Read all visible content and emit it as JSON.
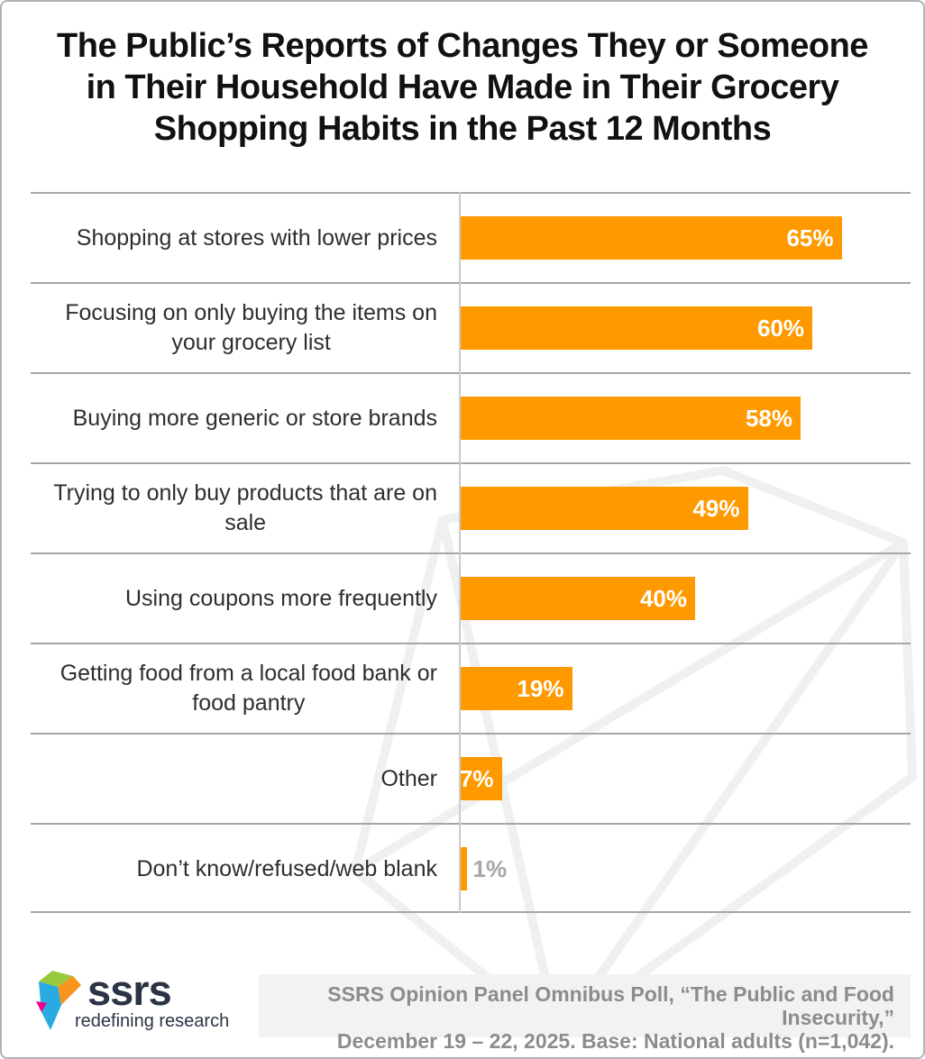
{
  "title": {
    "line1": "The Public’s Reports of Changes They or Someone",
    "line2": "in Their Household Have Made in Their Grocery",
    "line3": "Shopping Habits in the Past 12 Months"
  },
  "chart_data": {
    "type": "bar",
    "orientation": "horizontal",
    "title": "The Public’s Reports of Changes They or Someone in Their Household Have Made in Their Grocery Shopping Habits in the Past 12 Months",
    "categories": [
      "Shopping at stores with lower prices",
      "Focusing on only buying the items on your grocery list",
      "Buying more generic or store brands",
      "Trying to only buy products that are on sale",
      "Using coupons more frequently",
      "Getting food from a local food bank or food pantry",
      "Other",
      "Don’t know/refused/web blank"
    ],
    "label_lines": [
      [
        "Shopping at stores with lower prices"
      ],
      [
        "Focusing on only buying the items on",
        "your grocery list"
      ],
      [
        "Buying more generic or store brands"
      ],
      [
        "Trying to only buy products that are on",
        "sale"
      ],
      [
        "Using coupons more frequently"
      ],
      [
        "Getting food from a local food bank or",
        "food pantry"
      ],
      [
        "Other"
      ],
      [
        "Don’t know/refused/web blank"
      ]
    ],
    "values": [
      65,
      60,
      58,
      49,
      40,
      19,
      7,
      1
    ],
    "labels": [
      "65%",
      "60%",
      "58%",
      "49%",
      "40%",
      "19%",
      "7%",
      "1%"
    ],
    "label_inside": [
      true,
      true,
      true,
      true,
      true,
      true,
      true,
      false
    ],
    "unit": "%",
    "xlim": [
      0,
      77
    ],
    "bar_color": "#FF9900",
    "inside_label_color": "#ffffff",
    "outside_label_color": "#a6a6a6",
    "gridline_color": "#a6a6a6",
    "axis_line_color": "#cccccc",
    "legend": "none",
    "grid": "horizontal-row-separators"
  },
  "footer": {
    "logo_text": "ssrs",
    "logo_tagline": "redefining research",
    "source_line1": "SSRS Opinion Panel Omnibus Poll, “The Public and Food Insecurity,”",
    "source_line2": "December 19 – 22, 2025. Base: National adults (n=1,042)."
  },
  "colors": {
    "bar_orange": "#FF9900",
    "title_text": "#111111",
    "category_text": "#2e2e2e",
    "separator_gray": "#a6a6a6",
    "axis_gray": "#cccccc",
    "source_text": "#8c8c8c",
    "source_background": "#f2f2f2",
    "logo_navy": "#2b3444",
    "logo_green": "#97C93D",
    "logo_orange": "#F7941E",
    "logo_blue": "#29ABE2",
    "logo_pink": "#EC008C",
    "watermark_gray": "#f0f0f0",
    "page_border": "#b3b3b3"
  }
}
